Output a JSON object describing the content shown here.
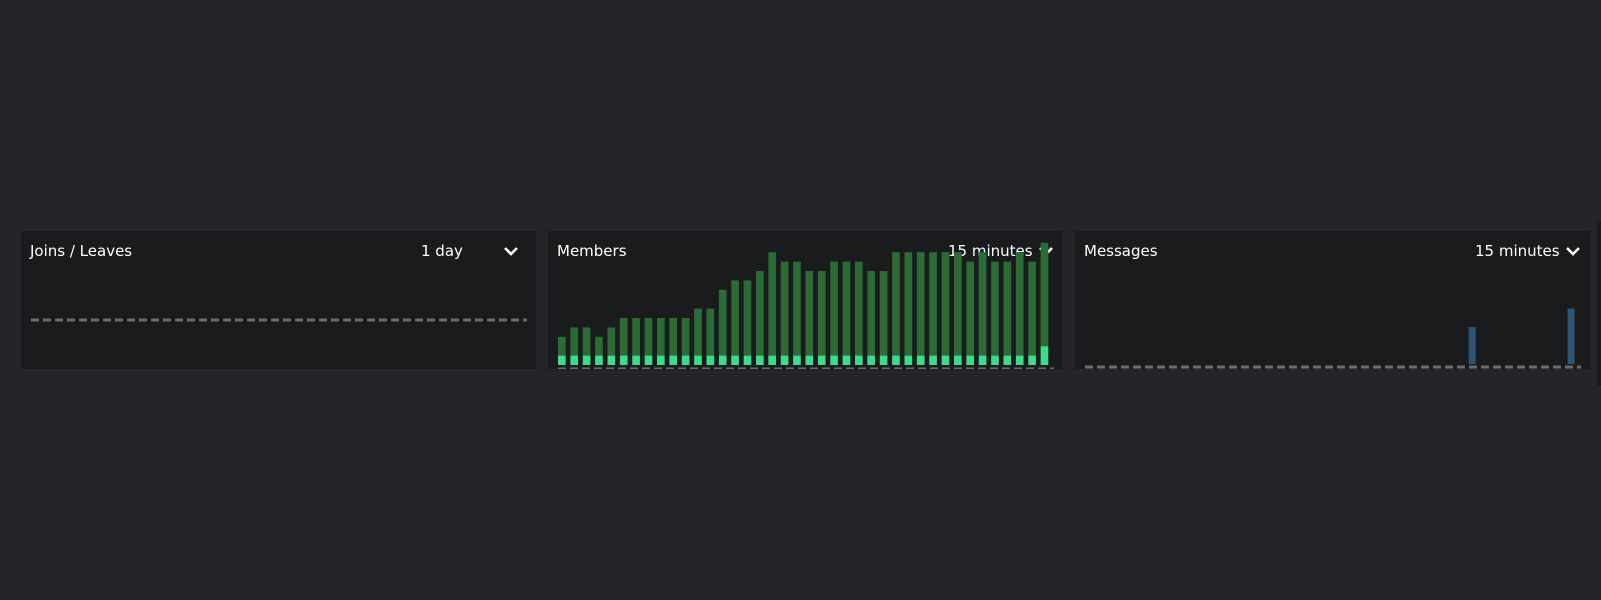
{
  "panels": [
    {
      "title": "Joins / Leaves",
      "range": "1 day",
      "icon": "chevron-down-icon"
    },
    {
      "title": "Members",
      "range": "15 minutes",
      "icon": "chevron-down-icon"
    },
    {
      "title": "Messages",
      "range": "15 minutes",
      "icon": "chevron-down-icon"
    }
  ],
  "colors": {
    "background": "#242528",
    "panel": "#1a1b1d",
    "members_dark": "#2b6b35",
    "members_light": "#3ddc8a",
    "messages_bar": "#2e5476",
    "baseline": "#6b6c70"
  },
  "chart_data": [
    {
      "type": "bar",
      "categories": [],
      "series": [],
      "note_values": "no data points visible"
    },
    {
      "type": "bar",
      "stacked": true,
      "series": [
        {
          "values": [
            1,
            1,
            1,
            1,
            1,
            1,
            1,
            1,
            1,
            1,
            1,
            1,
            1,
            1,
            1,
            1,
            1,
            1,
            1,
            1,
            1,
            1,
            1,
            1,
            1,
            1,
            1,
            1,
            1,
            1,
            1,
            1,
            1,
            1,
            1,
            1,
            1,
            1,
            1,
            2
          ]
        },
        {
          "values": [
            2,
            3,
            3,
            2,
            3,
            4,
            4,
            4,
            4,
            4,
            4,
            5,
            5,
            7,
            8,
            8,
            9,
            11,
            10,
            10,
            9,
            9,
            10,
            10,
            10,
            9,
            9,
            11,
            11,
            11,
            11,
            11,
            11,
            10,
            11,
            10,
            10,
            11,
            10,
            11
          ]
        }
      ]
    },
    {
      "type": "bar",
      "series": [
        {
          "values": [
            0,
            0,
            0,
            0,
            0,
            0,
            0,
            0,
            0,
            0,
            0,
            0,
            0,
            0,
            0,
            0,
            0,
            0,
            0,
            0,
            0,
            0,
            0,
            0,
            0,
            0,
            0,
            0,
            0,
            0,
            0,
            2,
            0,
            0,
            0,
            0,
            0,
            0,
            0,
            3
          ]
        }
      ]
    }
  ]
}
